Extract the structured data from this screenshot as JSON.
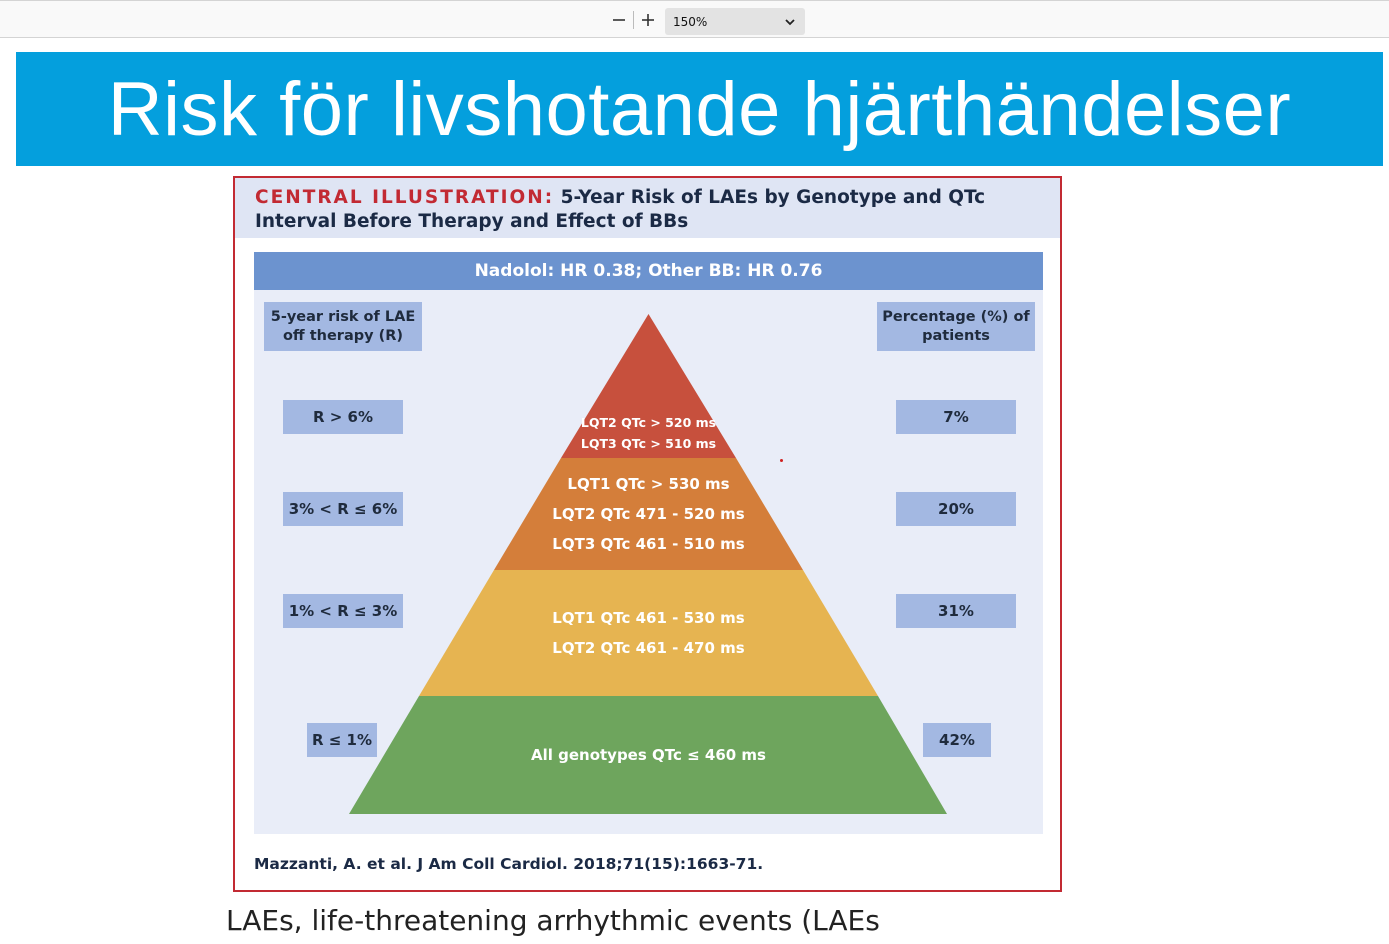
{
  "toolbar": {
    "zoom_out_icon": "minus-icon",
    "zoom_in_icon": "plus-icon",
    "zoom_value": "150%",
    "dropdown_icon": "chevron-down-icon"
  },
  "slide": {
    "title": "Risk för livshotande hjärthändelser",
    "footnote": "LAEs, life-threatening arrhythmic events (LAEs"
  },
  "figure": {
    "heading_prefix": "CENTRAL ILLUSTRATION:",
    "heading_text": "5-Year Risk of LAEs by Genotype and QTc Interval Before Therapy and Effect of BBs",
    "top_bar": "Nadolol: HR 0.38; Other BB: HR 0.76",
    "left_header": "5-year risk of LAE off therapy (R)",
    "right_header": "Percentage (%) of patients",
    "tiers": [
      {
        "risk": "R > 6%",
        "percent": "7%",
        "lines": [
          "LQT2 QTc > 520 ms",
          "LQT3 QTc > 510 ms"
        ],
        "color": "#c7503d"
      },
      {
        "risk": "3% < R ≤ 6%",
        "percent": "20%",
        "lines": [
          "LQT1 QTc > 530 ms",
          "LQT2 QTc 471 - 520 ms",
          "LQT3 QTc 461 - 510 ms"
        ],
        "color": "#d47e3a"
      },
      {
        "risk": "1% < R ≤ 3%",
        "percent": "31%",
        "lines": [
          "LQT1 QTc 461 - 530 ms",
          "LQT2 QTc 461 - 470 ms"
        ],
        "color": "#e6b451"
      },
      {
        "risk": "R ≤ 1%",
        "percent": "42%",
        "lines": [
          "All genotypes QTc ≤ 460 ms"
        ],
        "color": "#6ea55d"
      }
    ],
    "citation": "Mazzanti, A. et al. J Am Coll Cardiol. 2018;71(15):1663-71."
  }
}
